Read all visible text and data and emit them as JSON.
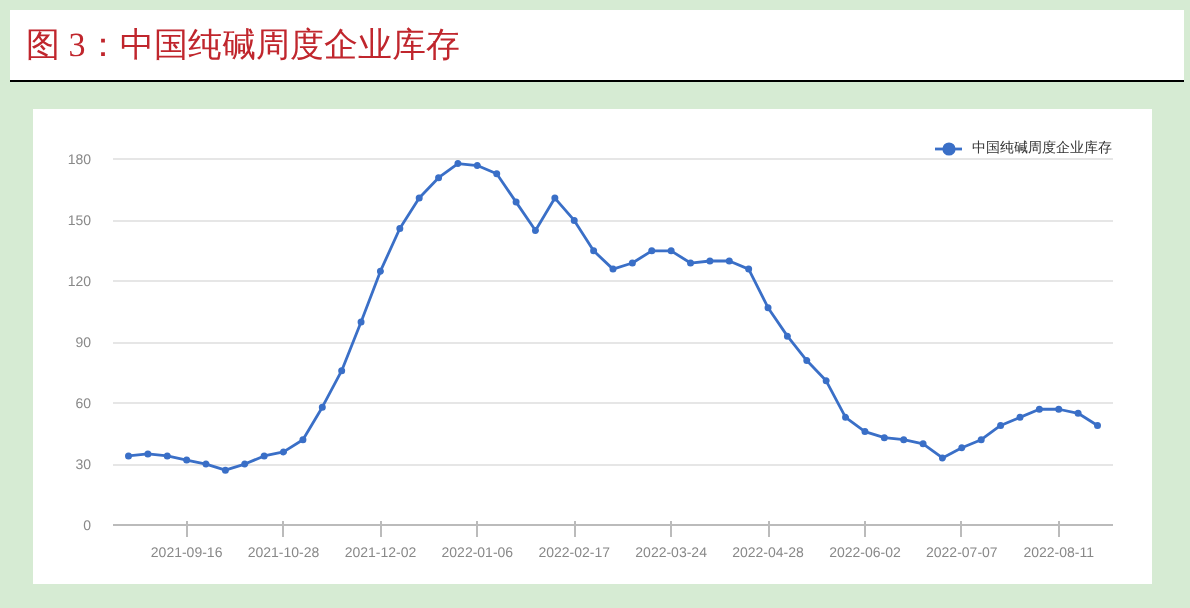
{
  "chart_data": {
    "type": "line",
    "title": "图 3：中国纯碱周度企业库存",
    "categories": [
      null,
      null,
      null,
      "2021-09-16",
      null,
      null,
      null,
      null,
      "2021-10-28",
      null,
      null,
      null,
      null,
      "2021-12-02",
      null,
      null,
      null,
      null,
      "2022-01-06",
      null,
      null,
      null,
      null,
      "2022-02-17",
      null,
      null,
      null,
      null,
      "2022-03-24",
      null,
      null,
      null,
      null,
      "2022-04-28",
      null,
      null,
      null,
      null,
      "2022-06-02",
      null,
      null,
      null,
      null,
      "2022-07-07",
      null,
      null,
      null,
      null,
      "2022-08-11",
      null,
      null
    ],
    "series": [
      {
        "name": "中国纯碱周度企业库存",
        "color": "#3a6fc7",
        "values": [
          34,
          35,
          34,
          32,
          30,
          27,
          30,
          34,
          36,
          42,
          58,
          76,
          100,
          125,
          146,
          161,
          171,
          178,
          177,
          173,
          159,
          145,
          161,
          150,
          135,
          126,
          129,
          135,
          135,
          129,
          130,
          130,
          126,
          107,
          93,
          81,
          71,
          53,
          46,
          43,
          42,
          40,
          33,
          38,
          42,
          49,
          53,
          57,
          57,
          55,
          49
        ]
      }
    ],
    "ylim": [
      0,
      195
    ],
    "yticks": [
      0,
      30,
      60,
      90,
      120,
      150,
      180
    ],
    "grid": "y",
    "legend": "top right",
    "marker": "circle",
    "line_style": "solid"
  }
}
